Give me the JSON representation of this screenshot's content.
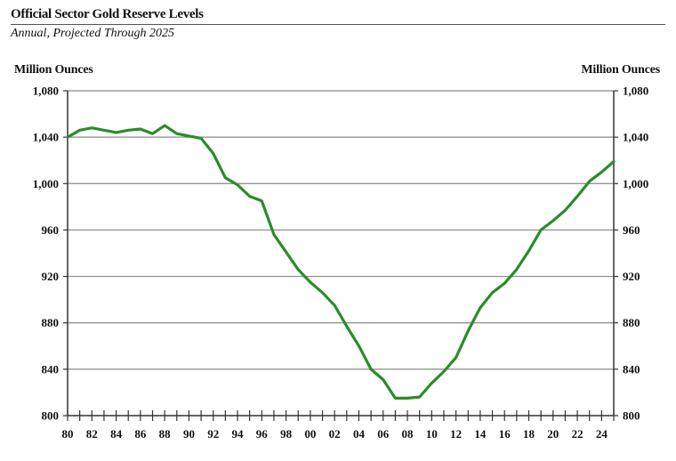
{
  "chart_data": {
    "type": "line",
    "title": "Official Sector Gold Reserve Levels",
    "subtitle": "Annual, Projected Through 2025",
    "ylabel_left": "Million Ounces",
    "ylabel_right": "Million Ounces",
    "ylim": [
      800,
      1080
    ],
    "yticks": [
      800,
      840,
      880,
      920,
      960,
      1000,
      1040,
      1080
    ],
    "ytick_labels": [
      "800",
      "840",
      "880",
      "920",
      "960",
      "1,000",
      "1,040",
      "1,080"
    ],
    "xlim": [
      1980,
      2025
    ],
    "xtick_years": [
      1980,
      1982,
      1984,
      1986,
      1988,
      1990,
      1992,
      1994,
      1996,
      1998,
      2000,
      2002,
      2004,
      2006,
      2008,
      2010,
      2012,
      2014,
      2016,
      2018,
      2020,
      2022,
      2024
    ],
    "xtick_labels": [
      "80",
      "82",
      "84",
      "86",
      "88",
      "90",
      "92",
      "94",
      "96",
      "98",
      "00",
      "02",
      "04",
      "06",
      "08",
      "10",
      "12",
      "14",
      "16",
      "18",
      "20",
      "22",
      "24"
    ],
    "grid": true,
    "series": [
      {
        "color": "#2a8c2a",
        "x": [
          1980,
          1981,
          1982,
          1983,
          1984,
          1985,
          1986,
          1987,
          1988,
          1989,
          1990,
          1991,
          1992,
          1993,
          1994,
          1995,
          1996,
          1997,
          1998,
          1999,
          2000,
          2001,
          2002,
          2003,
          2004,
          2005,
          2006,
          2007,
          2008,
          2009,
          2010,
          2011,
          2012,
          2013,
          2014,
          2015,
          2016,
          2017,
          2018,
          2019,
          2020,
          2021,
          2022,
          2023,
          2024,
          2025
        ],
        "y": [
          1040,
          1046,
          1048,
          1046,
          1044,
          1046,
          1047,
          1043,
          1050,
          1043,
          1041,
          1039,
          1026,
          1005,
          999,
          989,
          985,
          956,
          941,
          926,
          915,
          906,
          895,
          877,
          860,
          840,
          831,
          815,
          815,
          816,
          828,
          838,
          850,
          873,
          893,
          906,
          914,
          926,
          942,
          960,
          968,
          977,
          989,
          1002,
          1010,
          1019
        ]
      }
    ]
  }
}
